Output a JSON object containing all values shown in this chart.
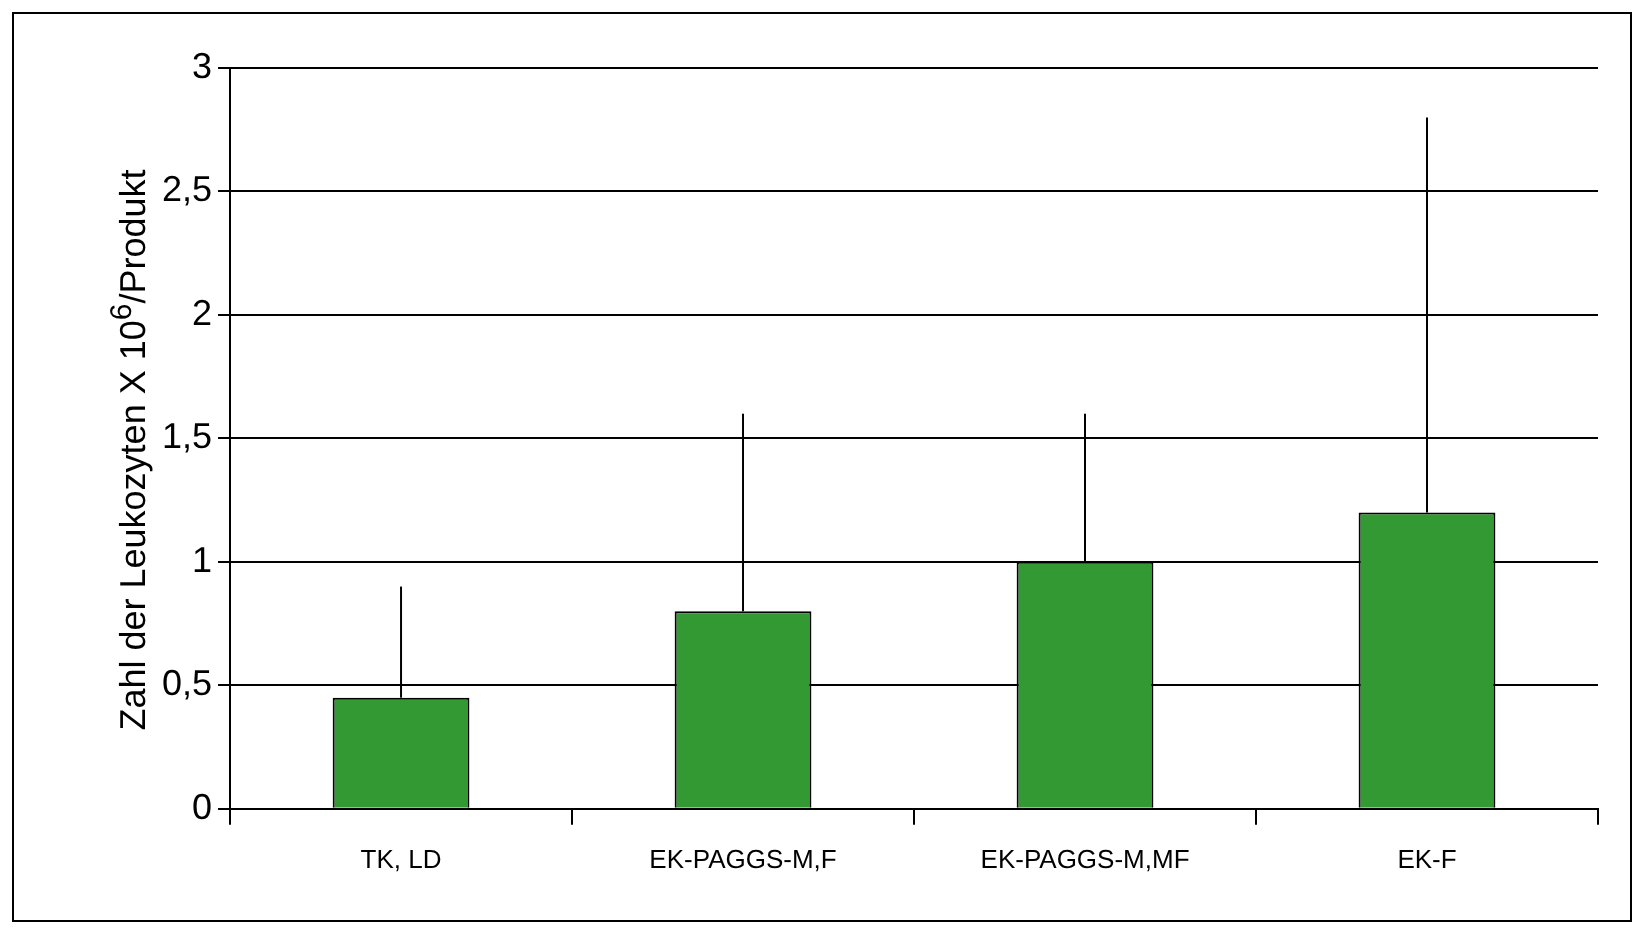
{
  "chart_data": {
    "type": "bar",
    "ylabel": "Zahl der Leukozyten X 10$^{6}$/Produkt",
    "categories": [
      "TK, LD",
      "EK-PAGGS-M,F",
      "EK-PAGGS-M,MF",
      "EK-F"
    ],
    "values": [
      0.45,
      0.8,
      1.0,
      1.2
    ],
    "errors": [
      [
        0.45,
        0.9
      ],
      [
        0.8,
        1.6
      ],
      [
        1.0,
        1.6
      ],
      [
        1.2,
        2.8
      ]
    ],
    "color": "#339933",
    "ylim": [
      0,
      3
    ],
    "yticks": [
      0,
      {
        "value": 0.5,
        "label": "0,5"
      },
      1,
      {
        "value": 1.5,
        "label": "1,5"
      },
      2,
      {
        "value": 2.5,
        "label": "2,5"
      },
      3
    ],
    "grid": "y",
    "legend": false
  }
}
